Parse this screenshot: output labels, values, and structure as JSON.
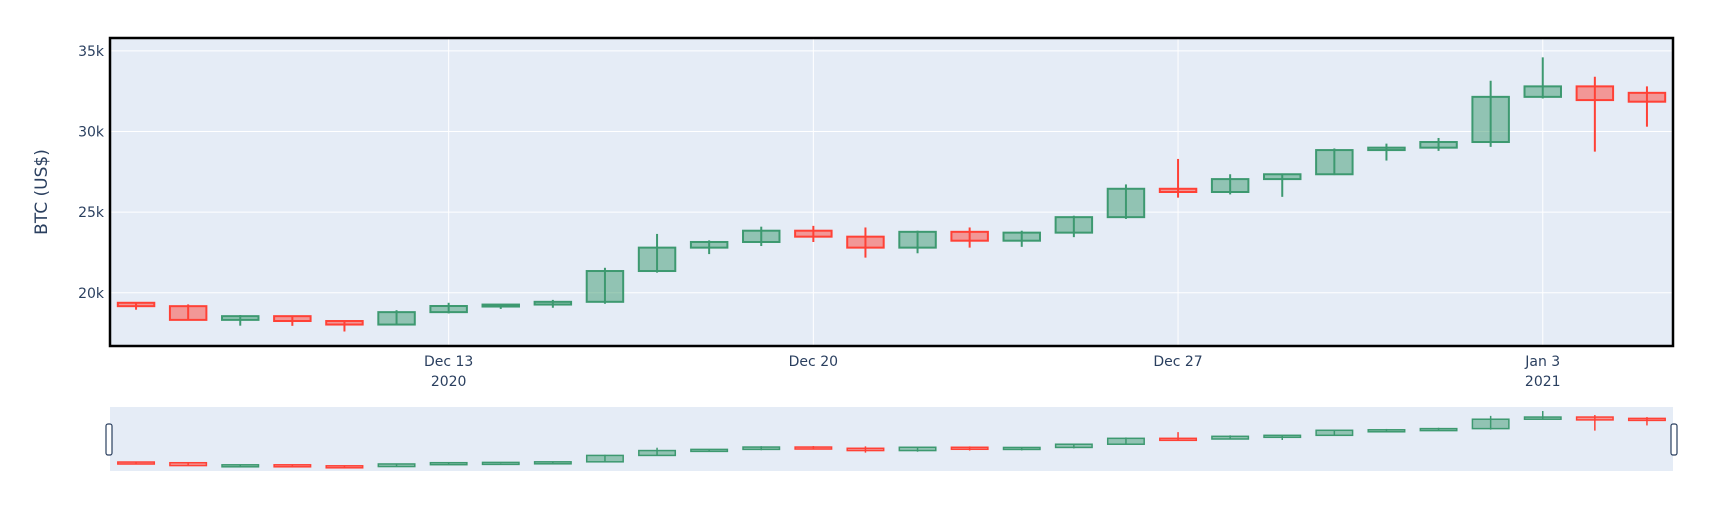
{
  "chart_data": {
    "type": "candlestick",
    "title": "",
    "xlabel": "",
    "ylabel": "BTC (US$)",
    "ylim": [
      16700,
      35800
    ],
    "grid": true,
    "colors": {
      "increasing": "#3d9970",
      "decreasing": "#ff4136",
      "plot_bg": "#e5ecf6",
      "axis_text": "#2a3f5f"
    },
    "yticks": [
      {
        "value": 20000,
        "label": "20k"
      },
      {
        "value": 25000,
        "label": "25k"
      },
      {
        "value": 30000,
        "label": "30k"
      },
      {
        "value": 35000,
        "label": "35k"
      }
    ],
    "xticks": [
      {
        "date": "2020-12-13",
        "label": "Dec 13",
        "sublabel": "2020"
      },
      {
        "date": "2020-12-20",
        "label": "Dec 20",
        "sublabel": ""
      },
      {
        "date": "2020-12-27",
        "label": "Dec 27",
        "sublabel": ""
      },
      {
        "date": "2021-01-03",
        "label": "Jan 3",
        "sublabel": "2021"
      }
    ],
    "candles": [
      {
        "date": "2020-12-07",
        "open": 19380,
        "high": 19420,
        "low": 18950,
        "close": 19170
      },
      {
        "date": "2020-12-08",
        "open": 19170,
        "high": 19280,
        "low": 18290,
        "close": 18320
      },
      {
        "date": "2020-12-09",
        "open": 18320,
        "high": 18620,
        "low": 17960,
        "close": 18550
      },
      {
        "date": "2020-12-10",
        "open": 18550,
        "high": 18570,
        "low": 17950,
        "close": 18250
      },
      {
        "date": "2020-12-11",
        "open": 18250,
        "high": 18290,
        "low": 17600,
        "close": 18030
      },
      {
        "date": "2020-12-12",
        "open": 18030,
        "high": 18920,
        "low": 18000,
        "close": 18800
      },
      {
        "date": "2020-12-13",
        "open": 18800,
        "high": 19380,
        "low": 18720,
        "close": 19180
      },
      {
        "date": "2020-12-14",
        "open": 19180,
        "high": 19300,
        "low": 19000,
        "close": 19270
      },
      {
        "date": "2020-12-15",
        "open": 19270,
        "high": 19560,
        "low": 19070,
        "close": 19440
      },
      {
        "date": "2020-12-16",
        "open": 19440,
        "high": 21550,
        "low": 19320,
        "close": 21350
      },
      {
        "date": "2020-12-17",
        "open": 21350,
        "high": 23650,
        "low": 21250,
        "close": 22800
      },
      {
        "date": "2020-12-18",
        "open": 22800,
        "high": 23250,
        "low": 22400,
        "close": 23150
      },
      {
        "date": "2020-12-19",
        "open": 23150,
        "high": 24100,
        "low": 22900,
        "close": 23850
      },
      {
        "date": "2020-12-20",
        "open": 23850,
        "high": 24150,
        "low": 23150,
        "close": 23480
      },
      {
        "date": "2020-12-21",
        "open": 23480,
        "high": 24050,
        "low": 22180,
        "close": 22800
      },
      {
        "date": "2020-12-22",
        "open": 22800,
        "high": 23850,
        "low": 22450,
        "close": 23780
      },
      {
        "date": "2020-12-23",
        "open": 23780,
        "high": 24050,
        "low": 22800,
        "close": 23230
      },
      {
        "date": "2020-12-24",
        "open": 23230,
        "high": 23850,
        "low": 22850,
        "close": 23730
      },
      {
        "date": "2020-12-25",
        "open": 23730,
        "high": 24780,
        "low": 23450,
        "close": 24690
      },
      {
        "date": "2020-12-26",
        "open": 24690,
        "high": 26720,
        "low": 24580,
        "close": 26450
      },
      {
        "date": "2020-12-27",
        "open": 26450,
        "high": 28300,
        "low": 25900,
        "close": 26250
      },
      {
        "date": "2020-12-28",
        "open": 26250,
        "high": 27350,
        "low": 26100,
        "close": 27050
      },
      {
        "date": "2020-12-29",
        "open": 27050,
        "high": 27400,
        "low": 25950,
        "close": 27350
      },
      {
        "date": "2020-12-30",
        "open": 27350,
        "high": 28950,
        "low": 27300,
        "close": 28850
      },
      {
        "date": "2020-12-31",
        "open": 28850,
        "high": 29250,
        "low": 28200,
        "close": 29000
      },
      {
        "date": "2021-01-01",
        "open": 29000,
        "high": 29600,
        "low": 28800,
        "close": 29350
      },
      {
        "date": "2021-01-02",
        "open": 29350,
        "high": 33150,
        "low": 29050,
        "close": 32150
      },
      {
        "date": "2021-01-03",
        "open": 32150,
        "high": 34600,
        "low": 32050,
        "close": 32800
      },
      {
        "date": "2021-01-04",
        "open": 32800,
        "high": 33400,
        "low": 28750,
        "close": 31950
      },
      {
        "date": "2021-01-05",
        "open": 32400,
        "high": 32800,
        "low": 30300,
        "close": 31850
      }
    ]
  },
  "rangeslider": {
    "visible": true
  }
}
